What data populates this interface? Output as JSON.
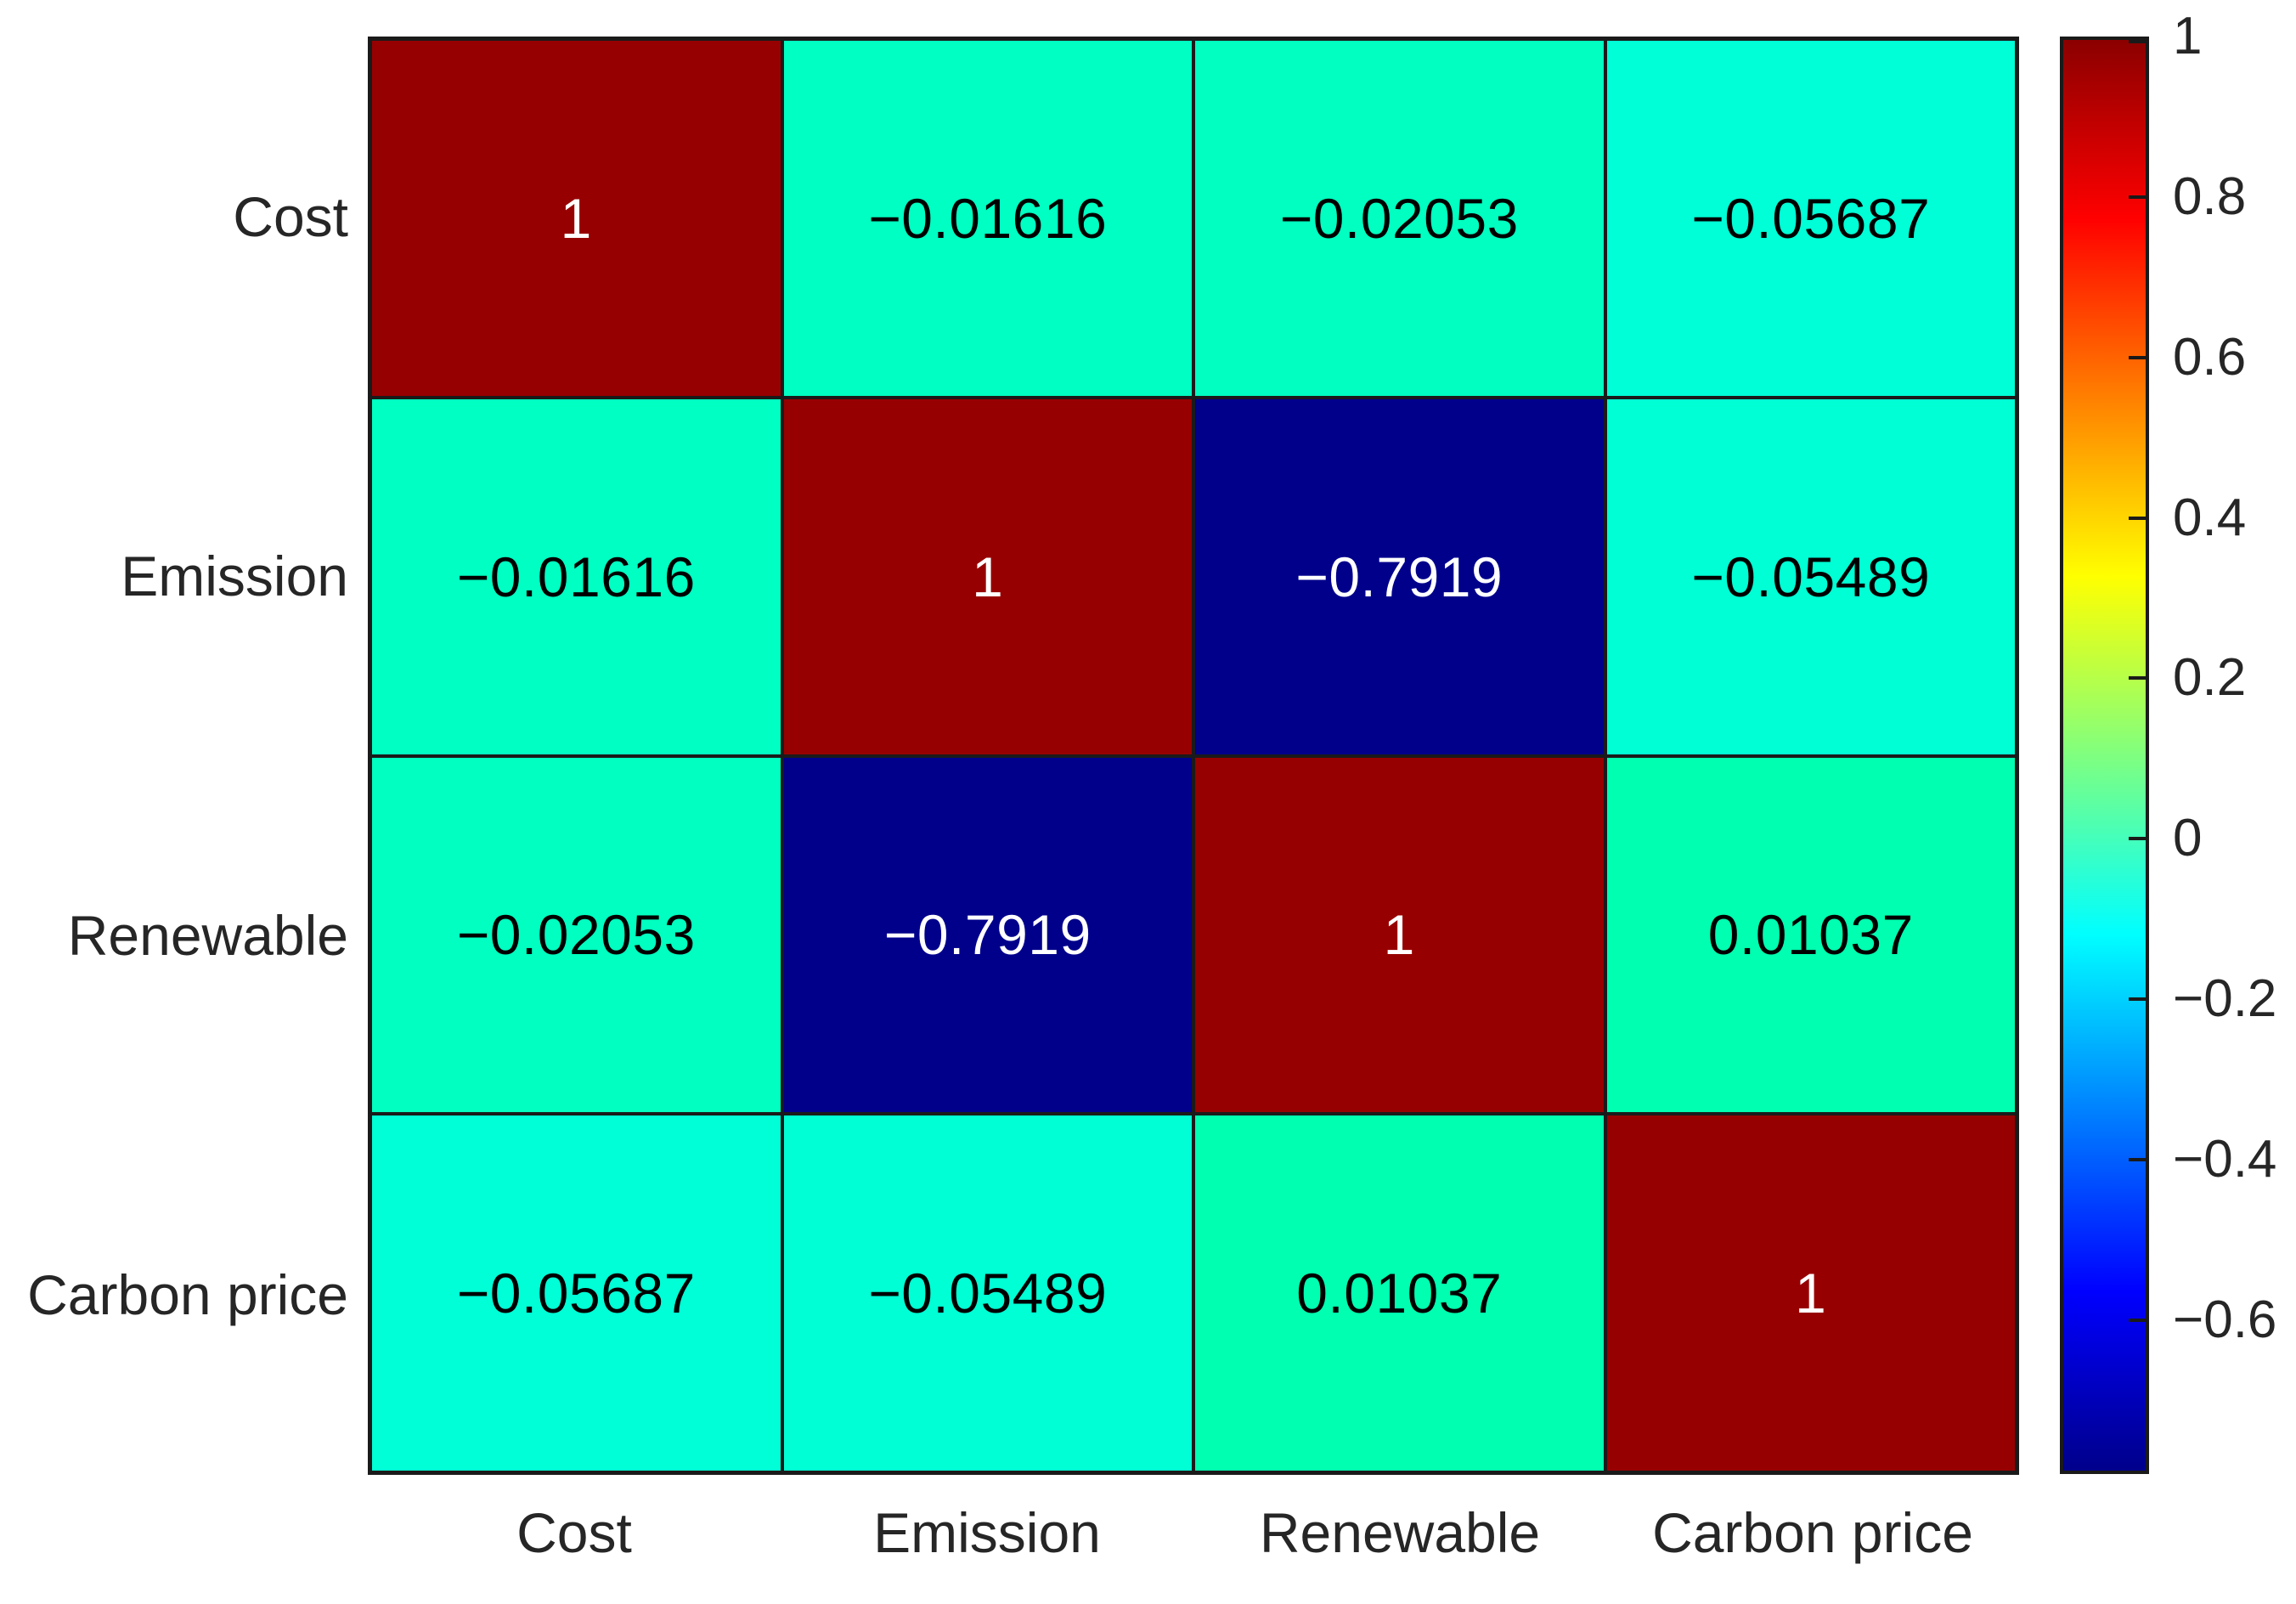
{
  "chart_data": {
    "type": "heatmap",
    "title": "",
    "colormap": "jet",
    "categories": [
      "Cost",
      "Emission",
      "Renewable",
      "Carbon price"
    ],
    "x_axis_labels": [
      "Cost",
      "Emission",
      "Renewable",
      "Carbon price"
    ],
    "y_axis_labels": [
      "Cost",
      "Emission",
      "Renewable",
      "Carbon price"
    ],
    "matrix": [
      [
        1,
        -0.01616,
        -0.02053,
        -0.05687
      ],
      [
        -0.01616,
        1,
        -0.7919,
        -0.05489
      ],
      [
        -0.02053,
        -0.7919,
        1,
        0.01037
      ],
      [
        -0.05687,
        -0.05489,
        0.01037,
        1
      ]
    ],
    "cell_labels": [
      [
        "1",
        "−0.01616",
        "−0.02053",
        "−0.05687"
      ],
      [
        "−0.01616",
        "1",
        "−0.7919",
        "−0.05489"
      ],
      [
        "−0.02053",
        "−0.7919",
        "1",
        "0.01037"
      ],
      [
        "−0.05687",
        "−0.05489",
        "0.01037",
        "1"
      ]
    ],
    "cell_colors": [
      [
        "#970000",
        "#00FFC2",
        "#00FFC0",
        "#00FFD6"
      ],
      [
        "#00FFC2",
        "#970000",
        "#00008B",
        "#00FFD4"
      ],
      [
        "#00FFC0",
        "#00008B",
        "#970000",
        "#00FFB0"
      ],
      [
        "#00FFD6",
        "#00FFD4",
        "#00FFB0",
        "#970000"
      ]
    ],
    "cell_text_colors": [
      [
        "#FFFFFF",
        "#000000",
        "#000000",
        "#000000"
      ],
      [
        "#000000",
        "#FFFFFF",
        "#FFFFFF",
        "#000000"
      ],
      [
        "#000000",
        "#FFFFFF",
        "#FFFFFF",
        "#000000"
      ],
      [
        "#000000",
        "#000000",
        "#000000",
        "#FFFFFF"
      ]
    ],
    "colorbar": {
      "vmin": -0.7919,
      "vmax": 1,
      "ticks": [
        1,
        0.8,
        0.6,
        0.4,
        0.2,
        0,
        -0.2,
        -0.4,
        -0.6
      ],
      "tick_labels": [
        "1",
        "0.8",
        "0.6",
        "0.4",
        "0.2",
        "0",
        "−0.2",
        "−0.4",
        "−0.6"
      ],
      "gradient_stops": [
        {
          "pos": 0,
          "color": "#00008B"
        },
        {
          "pos": 12.5,
          "color": "#0000FF"
        },
        {
          "pos": 37.5,
          "color": "#00FFFF"
        },
        {
          "pos": 62.5,
          "color": "#FFFF00"
        },
        {
          "pos": 87.5,
          "color": "#FF0000"
        },
        {
          "pos": 100,
          "color": "#8B0000"
        }
      ],
      "position": "right"
    },
    "grid": true,
    "legend_position": "right-colorbar"
  },
  "styles": {
    "background": "#FFFFFF",
    "grid_line_color": "#1A1A1A",
    "axis_label_color": "#262626",
    "diagonal_color": "#970000",
    "min_cell_color": "#00008B",
    "cell_text_light": "#FFFFFF",
    "cell_text_dark": "#000000"
  }
}
